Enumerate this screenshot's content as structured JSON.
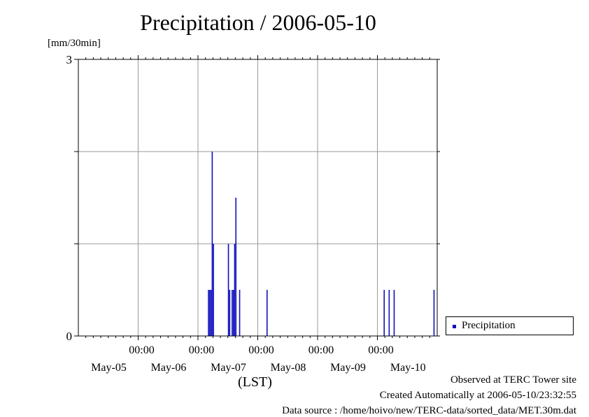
{
  "chart_data": {
    "type": "bar",
    "title": "Precipitation / 2006-05-10",
    "ylabel": "[mm/30min]",
    "xlabel": "(LST)",
    "ylim": [
      0,
      3
    ],
    "y_ticks_labeled": [
      "0",
      "3"
    ],
    "y_gridlines": [
      1,
      2
    ],
    "x_range_hours": [
      0,
      144
    ],
    "x_ticks": [
      {
        "hour": 24,
        "time": "00:00",
        "date": "May-05"
      },
      {
        "hour": 48,
        "time": "00:00",
        "date": "May-06"
      },
      {
        "hour": 72,
        "time": "00:00",
        "date": "May-07"
      },
      {
        "hour": 96,
        "time": "00:00",
        "date": "May-08"
      },
      {
        "hour": 120,
        "time": "00:00",
        "date": "May-09"
      }
    ],
    "x_extra_date_label": {
      "hour": 132,
      "date": "May-10"
    },
    "series": [
      {
        "name": "Precipitation",
        "color": "#1010c0",
        "points": [
          {
            "hour": 52.0,
            "value": 0.5
          },
          {
            "hour": 52.5,
            "value": 0.5
          },
          {
            "hour": 53.0,
            "value": 0.5
          },
          {
            "hour": 53.5,
            "value": 2.0
          },
          {
            "hour": 54.0,
            "value": 1.0
          },
          {
            "hour": 60.0,
            "value": 1.0
          },
          {
            "hour": 60.5,
            "value": 0.5
          },
          {
            "hour": 61.5,
            "value": 0.5
          },
          {
            "hour": 62.0,
            "value": 0.5
          },
          {
            "hour": 62.5,
            "value": 1.0
          },
          {
            "hour": 63.0,
            "value": 1.5
          },
          {
            "hour": 64.5,
            "value": 0.5
          },
          {
            "hour": 75.5,
            "value": 0.5
          },
          {
            "hour": 122.5,
            "value": 0.5
          },
          {
            "hour": 124.5,
            "value": 0.5
          },
          {
            "hour": 126.5,
            "value": 0.5
          },
          {
            "hour": 142.5,
            "value": 0.5
          }
        ]
      }
    ]
  },
  "legend": {
    "label": "Precipitation",
    "color": "#1010c0"
  },
  "footer": {
    "site": "Observed at TERC Tower site",
    "created": "Created Automatically at 2006-05-10/23:32:55",
    "source": "Data source : /home/hoivo/new/TERC-data/sorted_data/MET.30m.dat"
  }
}
